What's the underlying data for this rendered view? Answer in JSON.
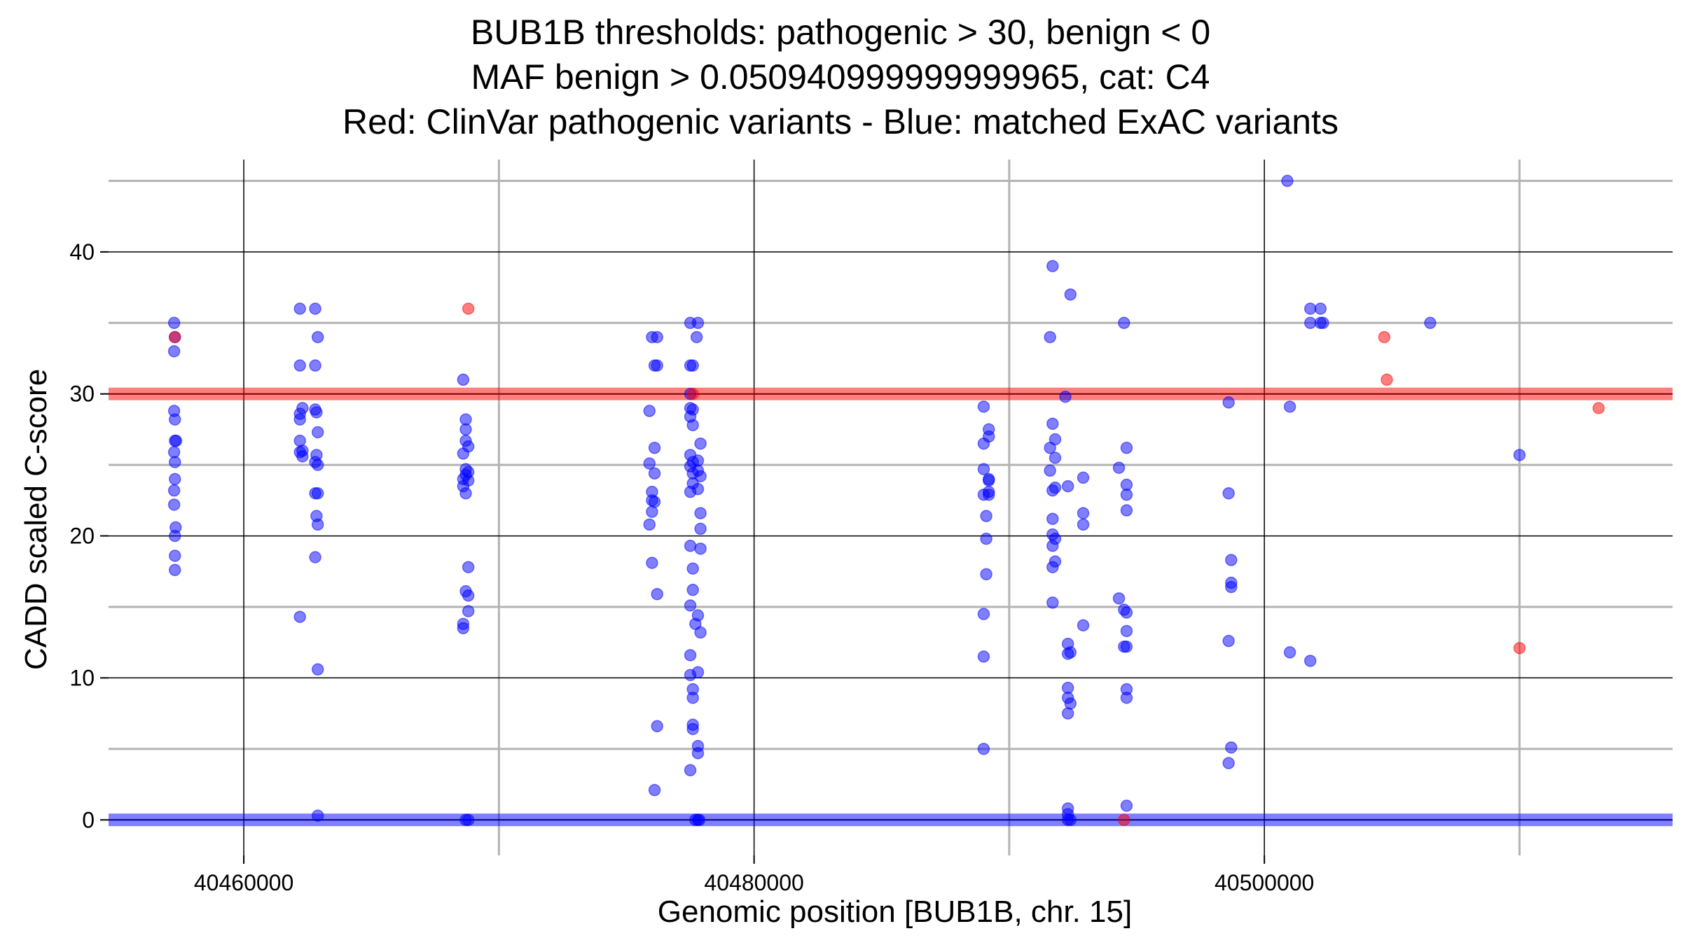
{
  "chart_data": {
    "type": "scatter",
    "title_lines": [
      "BUB1B thresholds: pathogenic > 30, benign < 0",
      "MAF benign > 0.050940999999999965, cat: C4",
      "Red: ClinVar pathogenic variants - Blue: matched ExAC variants"
    ],
    "xlabel": "Genomic position [BUB1B, chr. 15]",
    "ylabel": "CADD scaled C-score",
    "xlim": [
      40454700,
      40516000
    ],
    "ylim": [
      -2.5,
      46.5
    ],
    "x_ticks": [
      40460000,
      40480000,
      40500000
    ],
    "x_tick_labels": [
      "40460000",
      "40480000",
      "40500000"
    ],
    "y_ticks": [
      0,
      10,
      20,
      30,
      40
    ],
    "y_tick_labels": [
      "0",
      "10",
      "20",
      "30",
      "40"
    ],
    "grid": true,
    "thresholds": [
      {
        "name": "pathogenic",
        "value": 30,
        "color": "#ff0000"
      },
      {
        "name": "benign",
        "value": 0,
        "color": "#0000ff"
      }
    ],
    "series": [
      {
        "color": "#0000ff",
        "points": [
          [
            40457270,
            35
          ],
          [
            40457270,
            33
          ],
          [
            40457300,
            34
          ],
          [
            40457270,
            28.8
          ],
          [
            40457300,
            28.2
          ],
          [
            40457300,
            26.7
          ],
          [
            40457350,
            26.7
          ],
          [
            40457270,
            25.9
          ],
          [
            40457300,
            25.2
          ],
          [
            40457300,
            24
          ],
          [
            40457270,
            23.2
          ],
          [
            40457270,
            22.2
          ],
          [
            40457330,
            20.6
          ],
          [
            40457300,
            20
          ],
          [
            40457300,
            18.6
          ],
          [
            40457300,
            17.6
          ],
          [
            40462200,
            36
          ],
          [
            40462800,
            36
          ],
          [
            40462900,
            34
          ],
          [
            40462200,
            32
          ],
          [
            40462800,
            32
          ],
          [
            40462300,
            29
          ],
          [
            40462200,
            28.6
          ],
          [
            40462200,
            28.2
          ],
          [
            40462800,
            28.9
          ],
          [
            40462850,
            28.7
          ],
          [
            40462900,
            27.3
          ],
          [
            40462200,
            26.7
          ],
          [
            40462300,
            26
          ],
          [
            40462300,
            25.6
          ],
          [
            40462850,
            25.7
          ],
          [
            40462200,
            25.9
          ],
          [
            40462800,
            25.2
          ],
          [
            40462900,
            25
          ],
          [
            40462800,
            23
          ],
          [
            40462900,
            23
          ],
          [
            40462850,
            21.4
          ],
          [
            40462900,
            20.8
          ],
          [
            40462800,
            18.5
          ],
          [
            40462200,
            14.3
          ],
          [
            40462900,
            10.6
          ],
          [
            40462900,
            0.3
          ],
          [
            40468600,
            31
          ],
          [
            40468700,
            28.2
          ],
          [
            40468700,
            27.5
          ],
          [
            40468700,
            26.7
          ],
          [
            40468800,
            26.3
          ],
          [
            40468600,
            25.8
          ],
          [
            40468700,
            24.7
          ],
          [
            40468800,
            24.5
          ],
          [
            40468700,
            24.3
          ],
          [
            40468600,
            24
          ],
          [
            40468800,
            23.9
          ],
          [
            40468600,
            23.5
          ],
          [
            40468700,
            23
          ],
          [
            40468800,
            17.8
          ],
          [
            40468700,
            16.1
          ],
          [
            40468800,
            15.8
          ],
          [
            40468800,
            14.7
          ],
          [
            40468600,
            13.8
          ],
          [
            40468600,
            13.5
          ],
          [
            40468700,
            0
          ],
          [
            40468800,
            0
          ],
          [
            40476000,
            34
          ],
          [
            40476200,
            34
          ],
          [
            40476100,
            32
          ],
          [
            40476200,
            32
          ],
          [
            40475900,
            28.8
          ],
          [
            40476100,
            26.2
          ],
          [
            40475900,
            25.1
          ],
          [
            40476100,
            24.4
          ],
          [
            40476000,
            23.1
          ],
          [
            40476000,
            22.5
          ],
          [
            40476100,
            22.4
          ],
          [
            40476000,
            21.7
          ],
          [
            40475900,
            20.8
          ],
          [
            40476000,
            18.1
          ],
          [
            40476200,
            15.9
          ],
          [
            40476200,
            6.6
          ],
          [
            40476100,
            2.1
          ],
          [
            40477500,
            35
          ],
          [
            40477800,
            35
          ],
          [
            40477500,
            32
          ],
          [
            40477600,
            32
          ],
          [
            40477500,
            30
          ],
          [
            40477500,
            29
          ],
          [
            40477600,
            28.9
          ],
          [
            40477500,
            28.4
          ],
          [
            40477600,
            27.8
          ],
          [
            40477900,
            26.5
          ],
          [
            40477500,
            25.7
          ],
          [
            40477600,
            25.2
          ],
          [
            40477800,
            25.3
          ],
          [
            40477500,
            24.9
          ],
          [
            40477800,
            24.6
          ],
          [
            40477600,
            24.4
          ],
          [
            40477900,
            24.2
          ],
          [
            40477600,
            23.7
          ],
          [
            40477800,
            23.3
          ],
          [
            40477500,
            23.1
          ],
          [
            40477900,
            21.6
          ],
          [
            40477900,
            20.5
          ],
          [
            40477500,
            19.3
          ],
          [
            40477900,
            19.1
          ],
          [
            40477600,
            17.7
          ],
          [
            40477600,
            16.2
          ],
          [
            40477500,
            15.1
          ],
          [
            40477800,
            14.4
          ],
          [
            40477700,
            13.8
          ],
          [
            40477900,
            13.2
          ],
          [
            40477500,
            11.6
          ],
          [
            40477500,
            10.2
          ],
          [
            40477800,
            10.4
          ],
          [
            40477600,
            9.2
          ],
          [
            40477600,
            8.6
          ],
          [
            40477600,
            6.7
          ],
          [
            40477600,
            6.4
          ],
          [
            40477800,
            5.2
          ],
          [
            40477800,
            4.7
          ],
          [
            40477500,
            3.5
          ],
          [
            40477700,
            0
          ],
          [
            40477800,
            0
          ],
          [
            40477850,
            0
          ],
          [
            40477750,
            34
          ],
          [
            40489000,
            29.1
          ],
          [
            40489000,
            26.5
          ],
          [
            40489200,
            27.5
          ],
          [
            40489200,
            27
          ],
          [
            40489000,
            24.7
          ],
          [
            40489200,
            24
          ],
          [
            40489200,
            23.9
          ],
          [
            40489200,
            23.1
          ],
          [
            40489000,
            22.9
          ],
          [
            40489200,
            22.9
          ],
          [
            40489100,
            21.4
          ],
          [
            40489100,
            19.8
          ],
          [
            40489100,
            17.3
          ],
          [
            40489000,
            14.5
          ],
          [
            40489000,
            11.5
          ],
          [
            40489000,
            5
          ],
          [
            40491700,
            39
          ],
          [
            40492400,
            37
          ],
          [
            40491600,
            34
          ],
          [
            40492200,
            29.8
          ],
          [
            40491700,
            27.9
          ],
          [
            40491800,
            26.8
          ],
          [
            40491600,
            26.2
          ],
          [
            40491800,
            25.5
          ],
          [
            40491600,
            24.6
          ],
          [
            40491800,
            23.4
          ],
          [
            40491700,
            23.2
          ],
          [
            40492300,
            23.5
          ],
          [
            40492900,
            24.1
          ],
          [
            40491700,
            21.2
          ],
          [
            40491700,
            20.1
          ],
          [
            40491800,
            19.8
          ],
          [
            40491700,
            19.3
          ],
          [
            40491800,
            18.2
          ],
          [
            40491700,
            17.8
          ],
          [
            40492900,
            21.6
          ],
          [
            40492900,
            20.8
          ],
          [
            40491700,
            15.3
          ],
          [
            40492900,
            13.7
          ],
          [
            40492300,
            12.4
          ],
          [
            40492400,
            11.8
          ],
          [
            40492300,
            11.7
          ],
          [
            40492300,
            9.3
          ],
          [
            40492300,
            8.6
          ],
          [
            40492400,
            8.2
          ],
          [
            40492300,
            7.5
          ],
          [
            40492300,
            0.8
          ],
          [
            40492300,
            0.4
          ],
          [
            40492300,
            0
          ],
          [
            40492400,
            0
          ],
          [
            40494500,
            35
          ],
          [
            40494300,
            24.8
          ],
          [
            40494600,
            26.2
          ],
          [
            40494600,
            23.6
          ],
          [
            40494600,
            22.9
          ],
          [
            40494600,
            21.8
          ],
          [
            40494300,
            15.6
          ],
          [
            40494500,
            14.8
          ],
          [
            40494600,
            14.6
          ],
          [
            40494600,
            13.3
          ],
          [
            40494500,
            12.2
          ],
          [
            40494600,
            12.2
          ],
          [
            40494600,
            9.2
          ],
          [
            40494600,
            8.6
          ],
          [
            40494600,
            1
          ],
          [
            40498600,
            29.4
          ],
          [
            40498600,
            23
          ],
          [
            40498700,
            18.3
          ],
          [
            40498700,
            16.7
          ],
          [
            40498700,
            16.4
          ],
          [
            40498600,
            12.6
          ],
          [
            40498700,
            5.1
          ],
          [
            40498600,
            4
          ],
          [
            40500900,
            45
          ],
          [
            40501000,
            29.1
          ],
          [
            40501800,
            36
          ],
          [
            40502200,
            36
          ],
          [
            40501800,
            35
          ],
          [
            40502300,
            35
          ],
          [
            40502200,
            35
          ],
          [
            40506500,
            35
          ],
          [
            40501000,
            11.8
          ],
          [
            40501800,
            11.2
          ],
          [
            40510000,
            25.7
          ]
        ]
      },
      {
        "color": "#ff0000",
        "points": [
          [
            40457300,
            34
          ],
          [
            40468800,
            36
          ],
          [
            40477600,
            30
          ],
          [
            40494500,
            0
          ],
          [
            40504700,
            34
          ],
          [
            40504800,
            31
          ],
          [
            40510000,
            12.1
          ],
          [
            40513100,
            29
          ]
        ]
      }
    ]
  }
}
